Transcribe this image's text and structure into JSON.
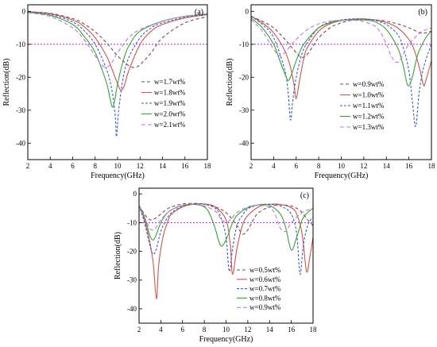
{
  "chart_data": [
    {
      "type": "line",
      "panel_label": "(a)",
      "xlabel": "Frequency(GHz)",
      "ylabel": "Reflection(dB)",
      "xlim": [
        2,
        18
      ],
      "ylim": [
        -45,
        2
      ],
      "xticks": [
        2,
        4,
        6,
        8,
        10,
        12,
        14,
        16,
        18
      ],
      "yticks": [
        0,
        -10,
        -20,
        -30,
        -40
      ],
      "reference_line": -10,
      "legend_position": "center-right",
      "series": [
        {
          "name": "w=1.7wt%",
          "color": "#7a4a4a",
          "dash": "4,3",
          "x": [
            2,
            4,
            6,
            7,
            8,
            9,
            10,
            11,
            11.5,
            12,
            13,
            14,
            16,
            18
          ],
          "values": [
            -0.1,
            -0.6,
            -2.2,
            -3.8,
            -6.2,
            -9.5,
            -13.5,
            -16.5,
            -17.0,
            -16.2,
            -12.5,
            -8.0,
            -3.5,
            -1.6
          ]
        },
        {
          "name": "w=1.8wt%",
          "color": "#d0544a",
          "dash": "",
          "x": [
            2,
            4,
            6,
            7,
            8,
            9,
            9.5,
            10,
            10.3,
            10.6,
            11,
            12,
            13,
            14,
            16,
            18
          ],
          "values": [
            -0.1,
            -0.7,
            -2.6,
            -4.6,
            -8.0,
            -13.5,
            -17.5,
            -22.0,
            -24.0,
            -22.5,
            -18.0,
            -10.0,
            -6.0,
            -4.0,
            -2.0,
            -1.0
          ]
        },
        {
          "name": "w=1.9wt%",
          "color": "#3a5fc8",
          "dash": "3,2",
          "x": [
            2,
            4,
            6,
            7,
            8,
            9,
            9.5,
            9.8,
            9.9,
            10.1,
            10.5,
            11,
            12,
            13,
            14,
            16,
            18
          ],
          "values": [
            -0.2,
            -0.9,
            -3.2,
            -5.8,
            -10.0,
            -17.5,
            -24.0,
            -32.0,
            -38.0,
            -30.0,
            -20.0,
            -14.0,
            -8.0,
            -5.0,
            -3.5,
            -1.8,
            -0.9
          ]
        },
        {
          "name": "w=2.0wt%",
          "color": "#3aa03a",
          "dash": "",
          "x": [
            2,
            4,
            6,
            7,
            8,
            9,
            9.3,
            9.6,
            10,
            10.5,
            11,
            12,
            14,
            16,
            18
          ],
          "values": [
            -0.3,
            -1.2,
            -4.0,
            -7.5,
            -12.5,
            -21.5,
            -26.0,
            -29.0,
            -22.0,
            -15.0,
            -10.5,
            -6.0,
            -3.0,
            -1.5,
            -0.8
          ]
        },
        {
          "name": "w=2.1wt%",
          "color": "#c07ad8",
          "dash": "5,3",
          "x": [
            2,
            4,
            6,
            7,
            8,
            8.5,
            9,
            9.5,
            10,
            11,
            12,
            14,
            16,
            18
          ],
          "values": [
            -0.4,
            -1.6,
            -5.0,
            -8.5,
            -13.5,
            -16.0,
            -17.0,
            -15.5,
            -12.5,
            -8.0,
            -5.5,
            -3.0,
            -1.5,
            -0.7
          ]
        }
      ]
    },
    {
      "type": "line",
      "panel_label": "(b)",
      "xlabel": "Frequency(GHz)",
      "ylabel": "Reflection(dB)",
      "xlim": [
        2,
        18
      ],
      "ylim": [
        -45,
        2
      ],
      "xticks": [
        2,
        4,
        6,
        8,
        10,
        12,
        14,
        16,
        18
      ],
      "yticks": [
        0,
        -10,
        -20,
        -30,
        -40
      ],
      "reference_line": -10,
      "legend_position": "bottom-center",
      "series": [
        {
          "name": "w=0.9wt%",
          "color": "#7a4a4a",
          "dash": "4,3",
          "x": [
            2,
            3,
            4,
            5,
            6,
            6.5,
            7,
            7.5,
            8,
            9,
            10,
            11,
            12,
            13,
            14,
            15,
            16,
            17,
            17.5,
            18
          ],
          "values": [
            -1.5,
            -3.0,
            -5.0,
            -8.5,
            -12.5,
            -14.0,
            -13.0,
            -10.5,
            -8.0,
            -5.0,
            -3.5,
            -2.7,
            -2.5,
            -2.6,
            -3.0,
            -3.8,
            -5.0,
            -6.5,
            -6.5,
            -6.0
          ]
        },
        {
          "name": "w=1.0wt%",
          "color": "#d0544a",
          "dash": "",
          "x": [
            2,
            3,
            4,
            5,
            5.5,
            5.8,
            6.0,
            6.3,
            6.7,
            7,
            8,
            9,
            10,
            11,
            12,
            13,
            14,
            15,
            16,
            16.5,
            17,
            17.3,
            17.5,
            18
          ],
          "values": [
            -1.5,
            -3.5,
            -6.5,
            -12.0,
            -17.0,
            -22.0,
            -26.5,
            -21.0,
            -14.0,
            -11.0,
            -6.0,
            -3.8,
            -2.8,
            -2.4,
            -2.3,
            -2.6,
            -3.4,
            -5.0,
            -8.5,
            -12.0,
            -18.0,
            -22.5,
            -21.0,
            -15.0
          ]
        },
        {
          "name": "w=1.1wt%",
          "color": "#3a5fc8",
          "dash": "3,2",
          "x": [
            2,
            3,
            4,
            5,
            5.3,
            5.5,
            5.7,
            6.0,
            6.5,
            7,
            8,
            9,
            10,
            11,
            12,
            13,
            14,
            15,
            15.5,
            16,
            16.3,
            16.6,
            16.9,
            17.3,
            18
          ],
          "values": [
            -1.5,
            -4.0,
            -8.0,
            -18.0,
            -25.0,
            -33.0,
            -27.0,
            -20.0,
            -13.0,
            -9.5,
            -5.0,
            -3.3,
            -2.6,
            -2.3,
            -2.3,
            -2.8,
            -4.0,
            -7.0,
            -11.0,
            -18.0,
            -27.0,
            -35.0,
            -25.0,
            -17.0,
            -10.0
          ]
        },
        {
          "name": "w=1.2wt%",
          "color": "#3aa03a",
          "dash": "",
          "x": [
            2,
            3,
            4,
            4.5,
            5,
            5.3,
            5.6,
            6.0,
            6.5,
            7,
            8,
            9,
            10,
            11,
            12,
            13,
            14,
            15,
            15.5,
            15.9,
            16.3,
            16.8,
            17.5,
            18
          ],
          "values": [
            -2.0,
            -5.0,
            -10.0,
            -14.5,
            -19.0,
            -21.0,
            -19.0,
            -15.0,
            -11.0,
            -8.5,
            -5.0,
            -3.5,
            -2.8,
            -2.6,
            -2.6,
            -3.2,
            -5.5,
            -11.0,
            -16.5,
            -22.5,
            -20.0,
            -13.0,
            -8.0,
            -6.0
          ]
        },
        {
          "name": "w=1.3wt%",
          "color": "#c07ad8",
          "dash": "5,3",
          "x": [
            2,
            3,
            4,
            4.5,
            5,
            5.5,
            6,
            7,
            8,
            9,
            10,
            11,
            12,
            13,
            13.5,
            14,
            14.5,
            15,
            15.5,
            16,
            17,
            18
          ],
          "values": [
            -2.5,
            -6.0,
            -11.5,
            -13.5,
            -12.5,
            -10.5,
            -8.5,
            -5.5,
            -3.8,
            -3.0,
            -2.7,
            -2.7,
            -3.1,
            -4.5,
            -6.5,
            -10.0,
            -14.0,
            -15.5,
            -13.0,
            -10.0,
            -6.5,
            -5.0
          ]
        }
      ]
    },
    {
      "type": "line",
      "panel_label": "(c)",
      "xlabel": "Frequency(GHz)",
      "ylabel": "Reflection(dB)",
      "xlim": [
        2,
        18
      ],
      "ylim": [
        -45,
        2
      ],
      "xticks": [
        2,
        4,
        6,
        8,
        10,
        12,
        14,
        16,
        18
      ],
      "yticks": [
        0,
        -10,
        -20,
        -30,
        -40
      ],
      "reference_line": -10,
      "legend_position": "bottom-right",
      "series": [
        {
          "name": "w=0.5wt%",
          "color": "#7a4a4a",
          "dash": "4,3",
          "x": [
            2,
            2.5,
            3,
            3.5,
            4,
            4.5,
            5,
            6,
            7,
            8,
            9,
            10,
            11,
            11.5,
            12,
            12.5,
            13,
            14,
            15,
            16,
            16.5,
            17,
            17.5,
            18
          ],
          "values": [
            -4,
            -7,
            -9,
            -8.5,
            -7,
            -5.5,
            -4.5,
            -3.5,
            -3.3,
            -3.5,
            -4.5,
            -6.5,
            -11.0,
            -14.0,
            -12.5,
            -9,
            -6.5,
            -4.5,
            -3.8,
            -4.2,
            -5.0,
            -6.5,
            -9,
            -11
          ]
        },
        {
          "name": "w=0.6wt%",
          "color": "#d0544a",
          "dash": "",
          "x": [
            2,
            2.5,
            3,
            3.3,
            3.6,
            3.8,
            4.2,
            4.7,
            5,
            6,
            7,
            8,
            9,
            10,
            10.4,
            10.6,
            11,
            11.5,
            12,
            13,
            14,
            15,
            16,
            16.5,
            17,
            17.4,
            17.7,
            18
          ],
          "values": [
            -4,
            -9,
            -17,
            -24,
            -36.5,
            -25,
            -15,
            -9,
            -7,
            -4.5,
            -3.6,
            -3.5,
            -4.5,
            -9,
            -18,
            -28,
            -19,
            -11,
            -7.5,
            -4.5,
            -3.6,
            -3.7,
            -4.8,
            -7,
            -14,
            -27,
            -22,
            -15
          ]
        },
        {
          "name": "w=0.7wt%",
          "color": "#3a5fc8",
          "dash": "3,2",
          "x": [
            2,
            2.5,
            3,
            3.3,
            3.6,
            4,
            4.5,
            5,
            6,
            7,
            8,
            9,
            9.5,
            10,
            10.3,
            10.6,
            11,
            11.5,
            12,
            13,
            14,
            15,
            16,
            16.5,
            16.8,
            17.1,
            17.5,
            18
          ],
          "values": [
            -4,
            -10,
            -18,
            -21,
            -19,
            -13,
            -9,
            -6.5,
            -4.3,
            -3.5,
            -3.6,
            -5,
            -8,
            -15,
            -27,
            -19,
            -11,
            -7.5,
            -5.2,
            -3.8,
            -3.6,
            -4.2,
            -7,
            -14,
            -28,
            -18,
            -11,
            -8
          ]
        },
        {
          "name": "w=0.8wt%",
          "color": "#3aa03a",
          "dash": "",
          "x": [
            2,
            2.5,
            3,
            3.3,
            3.6,
            4,
            4.5,
            5,
            6,
            7,
            8,
            8.5,
            9,
            9.5,
            10,
            10.5,
            11,
            12,
            13,
            14,
            15,
            15.5,
            16,
            16.5,
            17,
            17.5,
            18
          ],
          "values": [
            -4,
            -8,
            -14.5,
            -16,
            -14,
            -10,
            -7,
            -5.5,
            -4,
            -3.6,
            -4.5,
            -7,
            -12,
            -18,
            -16,
            -11,
            -7.5,
            -4.8,
            -3.8,
            -4.0,
            -7,
            -12,
            -19.5,
            -15,
            -9,
            -6.5,
            -5
          ]
        },
        {
          "name": "w=0.9wt%",
          "color": "#c07ad8",
          "dash": "5,3",
          "x": [
            2,
            2.5,
            3,
            3.3,
            3.6,
            4,
            4.5,
            5,
            6,
            7,
            8,
            9,
            9.5,
            10,
            10.5,
            11,
            12,
            13,
            14,
            14.5,
            15,
            15.5,
            16,
            17,
            18
          ],
          "values": [
            -4,
            -8,
            -12,
            -12.5,
            -11.5,
            -9,
            -7,
            -5.5,
            -4,
            -3.5,
            -4.2,
            -6,
            -8.5,
            -10,
            -8.5,
            -6.5,
            -4.5,
            -3.9,
            -4.8,
            -7,
            -12,
            -13,
            -10,
            -6.5,
            -5
          ]
        }
      ]
    }
  ]
}
